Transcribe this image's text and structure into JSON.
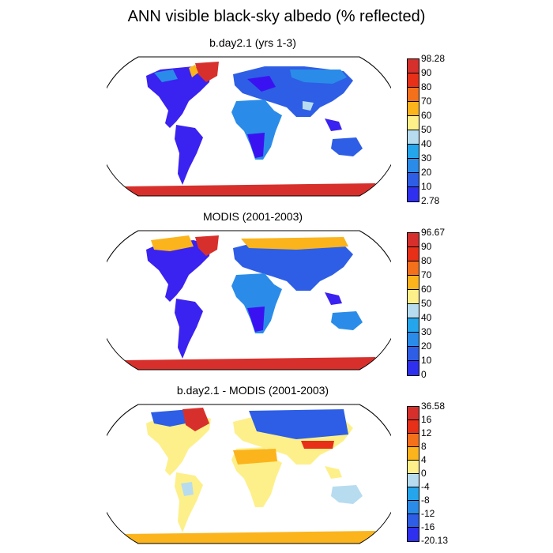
{
  "title": "ANN visible black-sky albedo (% reflected)",
  "panels": [
    {
      "name": "model",
      "title": "b.day2.1 (yrs 1-3)",
      "tick_labels": [
        "98.28",
        "90",
        "80",
        "70",
        "60",
        "50",
        "40",
        "30",
        "20",
        "10",
        "2.78"
      ],
      "colors": [
        "#d7302c",
        "#e83018",
        "#f4701b",
        "#fbb41c",
        "#fdf08a",
        "#b7dcf0",
        "#25a6ec",
        "#2a8ce8",
        "#2d5ee5",
        "#2f2ff0",
        "#3a12f2"
      ]
    },
    {
      "name": "obs",
      "title": "MODIS (2001-2003)",
      "tick_labels": [
        "96.67",
        "90",
        "80",
        "70",
        "60",
        "50",
        "40",
        "30",
        "20",
        "10",
        "0"
      ],
      "colors": [
        "#d7302c",
        "#e83018",
        "#f4701b",
        "#fbb41c",
        "#fdf08a",
        "#b7dcf0",
        "#25a6ec",
        "#2a8ce8",
        "#2d5ee5",
        "#2f2ff0",
        "#3a12f2"
      ]
    },
    {
      "name": "diff",
      "title": "b.day2.1 - MODIS (2001-2003)",
      "tick_labels": [
        "36.58",
        "16",
        "12",
        "8",
        "4",
        "0",
        "-4",
        "-8",
        "-12",
        "-16",
        "-20.13"
      ],
      "colors": [
        "#d7302c",
        "#e83018",
        "#f4701b",
        "#fbb41c",
        "#fdf08a",
        "#b7dcf0",
        "#25a6ec",
        "#2a8ce8",
        "#2d5ee5",
        "#2f2ff0",
        "#3a12f2"
      ]
    }
  ]
}
